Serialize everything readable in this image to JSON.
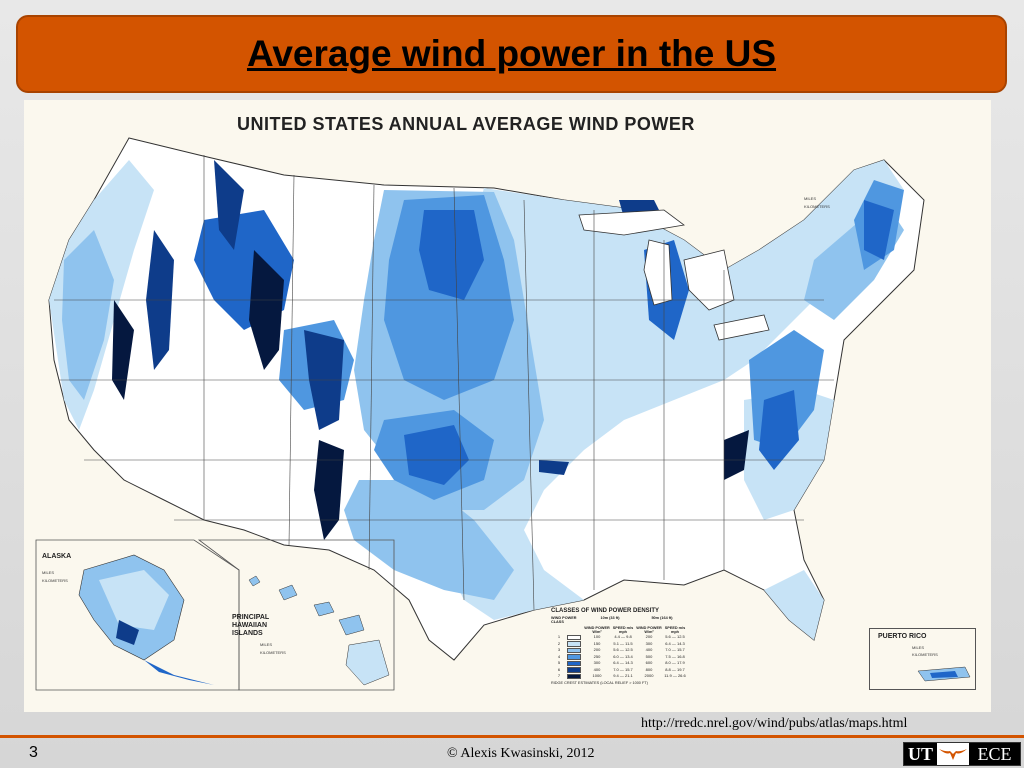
{
  "slide": {
    "title": "Average wind power in the US",
    "number": "3",
    "source_url": "http://rredc.nrel.gov/wind/pubs/atlas/maps.html",
    "copyright": "© Alexis Kwasinski, 2012",
    "logo_left": "UT",
    "logo_right": "ECE",
    "accent_color": "#d35400"
  },
  "map": {
    "title": "UNITED STATES ANNUAL AVERAGE WIND POWER",
    "insets": {
      "alaska": "ALASKA",
      "hawaii_line1": "PRINCIPAL",
      "hawaii_line2": "HAWAIIAN",
      "hawaii_line3": "ISLANDS",
      "puerto_rico": "PUERTO RICO"
    },
    "scale": {
      "miles": "MILES",
      "kilometers": "KILOMETERS"
    },
    "legend": {
      "title": "CLASSES OF WIND POWER DENSITY",
      "col_class": "WIND POWER CLASS",
      "col_10m": "10m (33 ft)",
      "col_50m": "50m (164 ft)",
      "col_power": "WIND POWER W/m²",
      "col_speed": "SPEED m/s  mph",
      "rows": [
        {
          "cls": "1",
          "p10": "100",
          "s10": "4.4 — 9.8",
          "p50": "200",
          "s50": "5.6 — 12.5",
          "color": "#ffffff"
        },
        {
          "cls": "2",
          "p10": "150",
          "s10": "5.1 — 11.5",
          "p50": "300",
          "s50": "6.4 — 14.3",
          "color": "#c7e3f6"
        },
        {
          "cls": "3",
          "p10": "200",
          "s10": "5.6 — 12.5",
          "p50": "400",
          "s50": "7.0 — 15.7",
          "color": "#8fc3ee"
        },
        {
          "cls": "4",
          "p10": "250",
          "s10": "6.0 — 13.4",
          "p50": "500",
          "s50": "7.5 — 16.8",
          "color": "#4f97e0"
        },
        {
          "cls": "5",
          "p10": "300",
          "s10": "6.4 — 14.3",
          "p50": "600",
          "s50": "8.0 — 17.9",
          "color": "#1f66c8"
        },
        {
          "cls": "6",
          "p10": "400",
          "s10": "7.0 — 15.7",
          "p50": "800",
          "s50": "8.8 — 19.7",
          "color": "#0e3c8a"
        },
        {
          "cls": "7",
          "p10": "1000",
          "s10": "9.4 — 21.1",
          "p50": "2000",
          "s50": "11.9 — 26.6",
          "color": "#05183f"
        }
      ],
      "note": "RIDGE CREST ESTIMATES (LOCAL RELIEF > 1000 FT)"
    },
    "colors": {
      "class1": "#ffffff",
      "class2": "#c7e3f6",
      "class3": "#8fc3ee",
      "class4": "#4f97e0",
      "class5": "#1f66c8",
      "class6": "#0e3c8a",
      "class7": "#05183f"
    }
  }
}
